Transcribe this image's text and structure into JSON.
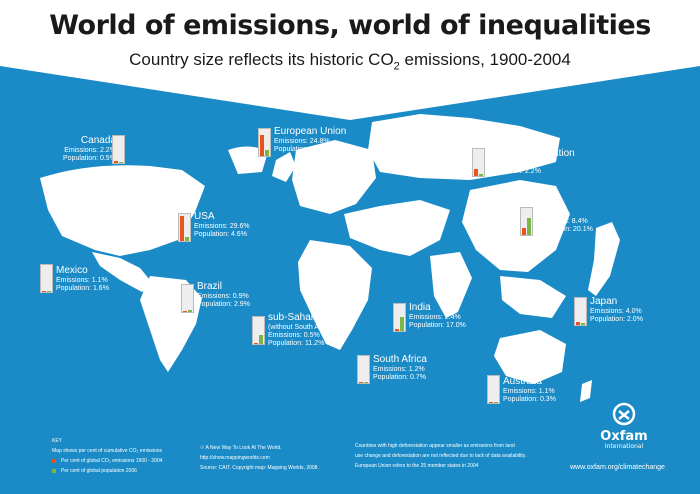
{
  "header": {
    "title": "World of emissions, world of inequalities",
    "subtitle_main": "Country size reflects its historic CO",
    "subtitle_sub": "2",
    "subtitle_tail": " emissions, 1900-2004"
  },
  "colors": {
    "ocean": "#1a8bc7",
    "land": "#ffffff",
    "emissions": "#e8541e",
    "population": "#7ab648"
  },
  "regions": [
    {
      "key": "canada",
      "name": "Canada",
      "emissions": "Emissions: 2.2%",
      "population": "Population: 0.5%",
      "emissions_pct": 2.2,
      "population_pct": 0.5
    },
    {
      "key": "eu",
      "name": "European Union",
      "emissions": "Emissions: 24.8%",
      "population": "Population:  7.1%",
      "emissions_pct": 24.8,
      "population_pct": 7.1
    },
    {
      "key": "russia",
      "name": "Russian Federation",
      "emissions": "Emissions: 8.4%",
      "population": "Population: 2.2%",
      "emissions_pct": 8.4,
      "population_pct": 2.2
    },
    {
      "key": "usa",
      "name": "USA",
      "emissions": "Emissions: 29.6%",
      "population": "Population: 4.6%",
      "emissions_pct": 29.6,
      "population_pct": 4.6
    },
    {
      "key": "china",
      "name": "China",
      "emissions": "Emissions: 8.4%",
      "population": "Population: 20.1%",
      "emissions_pct": 8.4,
      "population_pct": 20.1
    },
    {
      "key": "mexico",
      "name": "Mexico",
      "emissions": "Emissions: 1.1%",
      "population": "Population: 1.6%",
      "emissions_pct": 1.1,
      "population_pct": 1.6
    },
    {
      "key": "brazil",
      "name": "Brazil",
      "emissions": "Emissions: 0.9%",
      "population": "Population: 2.9%",
      "emissions_pct": 0.9,
      "population_pct": 2.9
    },
    {
      "key": "ssa",
      "name": "sub-Saharan Africa",
      "note": "(without South Africa)",
      "emissions": "Emissions: 0.5%",
      "population": "Population: 11.2%",
      "emissions_pct": 0.5,
      "population_pct": 11.2
    },
    {
      "key": "india",
      "name": "India",
      "emissions": "Emissions: 2.4%",
      "population": "Population: 17.0%",
      "emissions_pct": 2.4,
      "population_pct": 17.0
    },
    {
      "key": "japan",
      "name": "Japan",
      "emissions": "Emissions: 4.0%",
      "population": "Population: 2.0%",
      "emissions_pct": 4.0,
      "population_pct": 2.0
    },
    {
      "key": "southafrica",
      "name": "South Africa",
      "emissions": "Emissions: 1.2%",
      "population": "Population: 0.7%",
      "emissions_pct": 1.2,
      "population_pct": 0.7
    },
    {
      "key": "australia",
      "name": "Australia",
      "emissions": "Emissions: 1.1%",
      "population": "Population: 0.3%",
      "emissions_pct": 1.1,
      "population_pct": 0.3
    }
  ],
  "key": {
    "title": "KEY",
    "desc": "Map shows per cent of cumulative CO₂ emissions",
    "emissions_label": "Per cent of global CO₂ emissions 1900 - 2004",
    "population_label": "Per cent of global population 2006"
  },
  "source": {
    "line1": "A New Way To Look At The World.",
    "line2": "http://show.mappingworlds.com",
    "line3": "Source: CAIT. Copyright map: Mapping Worlds, 2008."
  },
  "notes": {
    "line1": "Countries with high deforestation appear smaller as emissions from land",
    "line2": "use change and deforestation are not reflected due to lack of data availability.",
    "line3": "European Union refers to the 25 member states in 2004"
  },
  "brand": {
    "name": "Oxfam",
    "sub": "International",
    "url": "www.oxfam.org/climatechange"
  }
}
